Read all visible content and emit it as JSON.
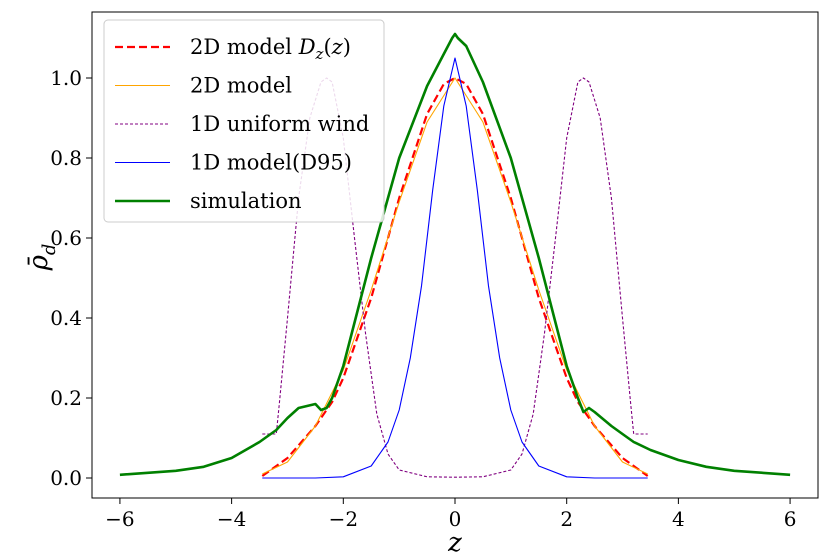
{
  "chart_data": {
    "type": "line",
    "title": "",
    "xlabel": "z",
    "ylabel": "ρ̄_d",
    "xlim": [
      -6.5,
      6.5
    ],
    "ylim": [
      -0.05,
      1.165
    ],
    "xticks": [
      -6,
      -4,
      -2,
      0,
      2,
      4,
      6
    ],
    "xtick_labels": [
      "−6",
      "−4",
      "−2",
      "0",
      "2",
      "4",
      "6"
    ],
    "yticks": [
      0.0,
      0.2,
      0.4,
      0.6,
      0.8,
      1.0
    ],
    "ytick_labels": [
      "0.0",
      "0.2",
      "0.4",
      "0.6",
      "0.8",
      "1.0"
    ],
    "grid": false,
    "legend_position": "top-left",
    "series": [
      {
        "name": "2D model D_z(z)",
        "color": "#ff0000",
        "style": "dashed",
        "x": [
          -3.45,
          -3.0,
          -2.5,
          -2.2,
          -2.0,
          -1.5,
          -1.0,
          -0.5,
          -0.2,
          0.0,
          0.2,
          0.5,
          1.0,
          1.5,
          2.0,
          2.2,
          2.5,
          3.0,
          3.45
        ],
        "y": [
          0.005,
          0.05,
          0.13,
          0.19,
          0.25,
          0.45,
          0.7,
          0.91,
          0.985,
          1.0,
          0.985,
          0.91,
          0.7,
          0.45,
          0.25,
          0.19,
          0.13,
          0.05,
          0.005
        ]
      },
      {
        "name": "2D model",
        "color": "#ffa500",
        "style": "solid",
        "x": [
          -3.45,
          -3.0,
          -2.5,
          -2.0,
          -1.5,
          -1.0,
          -0.5,
          0.0,
          0.5,
          1.0,
          1.5,
          2.0,
          2.5,
          3.0,
          3.45
        ],
        "y": [
          0.01,
          0.04,
          0.13,
          0.27,
          0.47,
          0.69,
          0.89,
          1.0,
          0.89,
          0.69,
          0.47,
          0.27,
          0.13,
          0.04,
          0.01
        ]
      },
      {
        "name": "1D uniform wind",
        "color": "#800080",
        "style": "dashed",
        "x": [
          -3.45,
          -3.2,
          -3.15,
          -3.0,
          -2.8,
          -2.6,
          -2.4,
          -2.3,
          -2.2,
          -2.0,
          -1.8,
          -1.6,
          -1.4,
          -1.2,
          -1.0,
          -0.5,
          0.0,
          0.5,
          1.0,
          1.2,
          1.4,
          1.6,
          1.8,
          2.0,
          2.2,
          2.3,
          2.4,
          2.6,
          2.8,
          3.0,
          3.15,
          3.2,
          3.45
        ],
        "y": [
          0.11,
          0.11,
          0.18,
          0.4,
          0.7,
          0.9,
          0.99,
          1.0,
          0.99,
          0.85,
          0.6,
          0.36,
          0.16,
          0.06,
          0.02,
          0.003,
          0.002,
          0.003,
          0.02,
          0.06,
          0.16,
          0.36,
          0.6,
          0.85,
          0.99,
          1.0,
          0.99,
          0.9,
          0.7,
          0.4,
          0.18,
          0.11,
          0.11
        ]
      },
      {
        "name": "1D model(D95)",
        "color": "#0000ff",
        "style": "solid",
        "x": [
          -3.45,
          -2.5,
          -2.0,
          -1.5,
          -1.2,
          -1.0,
          -0.8,
          -0.6,
          -0.4,
          -0.2,
          0.0,
          0.2,
          0.4,
          0.6,
          0.8,
          1.0,
          1.2,
          1.5,
          2.0,
          2.5,
          3.45
        ],
        "y": [
          0.0,
          0.0,
          0.003,
          0.03,
          0.09,
          0.17,
          0.3,
          0.48,
          0.72,
          0.93,
          1.05,
          0.93,
          0.72,
          0.48,
          0.3,
          0.17,
          0.09,
          0.03,
          0.003,
          0.0,
          0.0
        ]
      },
      {
        "name": "simulation",
        "color": "#008000",
        "style": "solid",
        "x": [
          -6.0,
          -5.0,
          -4.5,
          -4.0,
          -3.5,
          -3.2,
          -3.0,
          -2.8,
          -2.5,
          -2.4,
          -2.3,
          -2.2,
          -2.0,
          -1.5,
          -1.0,
          -0.5,
          -0.2,
          -0.05,
          0.0,
          0.05,
          0.2,
          0.5,
          1.0,
          1.5,
          2.0,
          2.2,
          2.3,
          2.4,
          2.5,
          2.8,
          3.0,
          3.2,
          3.5,
          4.0,
          4.5,
          5.0,
          6.0
        ],
        "y": [
          0.008,
          0.018,
          0.028,
          0.05,
          0.09,
          0.12,
          0.15,
          0.175,
          0.185,
          0.17,
          0.175,
          0.2,
          0.28,
          0.55,
          0.8,
          0.98,
          1.06,
          1.1,
          1.11,
          1.1,
          1.08,
          0.99,
          0.8,
          0.55,
          0.28,
          0.2,
          0.165,
          0.175,
          0.165,
          0.13,
          0.11,
          0.09,
          0.07,
          0.045,
          0.028,
          0.018,
          0.008
        ]
      }
    ]
  }
}
